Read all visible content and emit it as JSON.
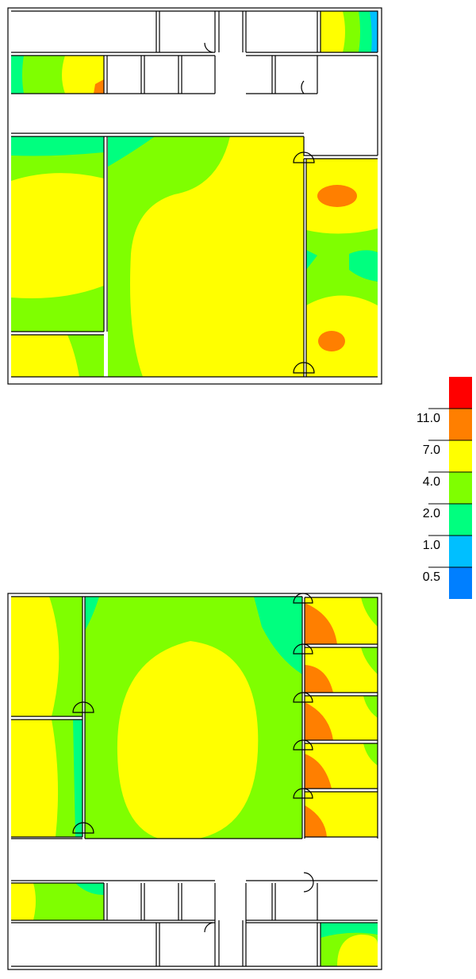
{
  "legend": {
    "colors": [
      "#ff0000",
      "#ff7f00",
      "#ffff00",
      "#7fff00",
      "#00ff7f",
      "#00bfff",
      "#007fff"
    ],
    "labels": [
      "11.0",
      "7.0",
      "4.0",
      "2.0",
      "1.0",
      "0.5"
    ]
  }
}
